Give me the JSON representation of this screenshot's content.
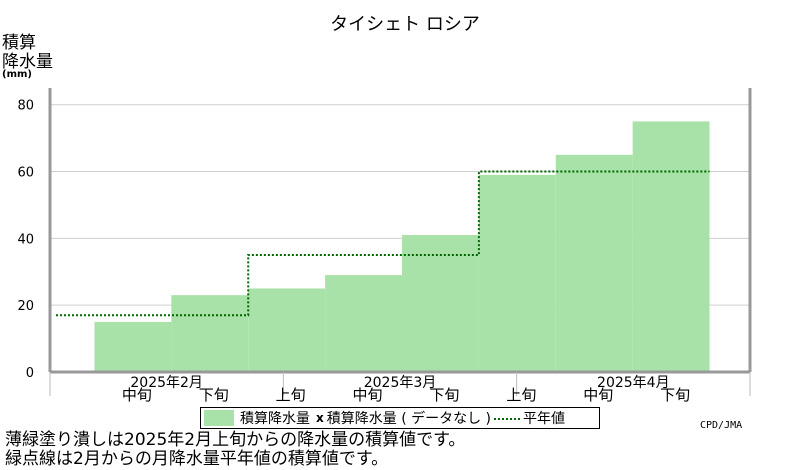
{
  "chart_data": {
    "type": "bar",
    "title": "タイシェト ロシア",
    "ylabel_lines": [
      "積算",
      "降水量",
      "(mm)"
    ],
    "ylim": [
      0,
      85
    ],
    "yticks": [
      0,
      20,
      40,
      60,
      80
    ],
    "grid": true,
    "x_sublabels": [
      "中旬",
      "下旬",
      "上旬",
      "中旬",
      "下旬",
      "上旬",
      "中旬",
      "下旬"
    ],
    "x_month_labels": [
      "2025年2月",
      "2025年3月",
      "2025年4月"
    ],
    "series": [
      {
        "name": "積算降水量",
        "kind": "bar",
        "color": "#a9e2a8",
        "values": [
          15,
          23,
          25,
          29,
          41,
          59,
          65,
          75
        ]
      },
      {
        "name": "平年値",
        "kind": "step",
        "color": "#006600",
        "values": [
          17,
          17,
          35,
          35,
          35,
          60,
          60,
          60
        ]
      }
    ],
    "legend": {
      "position": "bottom",
      "bar_label": "積算降水量",
      "missing_mark": "x",
      "missing_label": "積算降水量 ( データなし )",
      "normal_label": "平年値"
    }
  },
  "footnotes": [
    "薄緑塗り潰しは2025年2月上旬からの降水量の積算値です。",
    "緑点線は2月からの月降水量平年値の積算値です。"
  ],
  "credit": "CPD/JMA"
}
